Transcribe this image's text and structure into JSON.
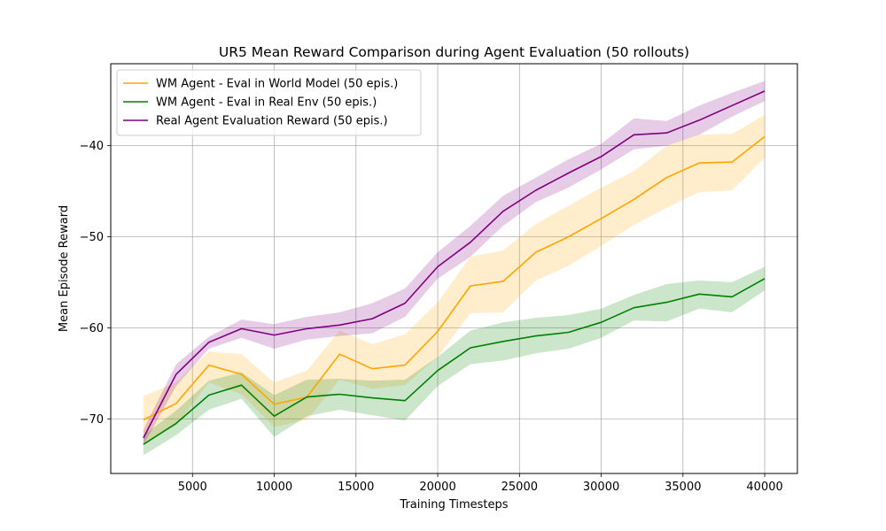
{
  "chart_data": {
    "type": "line",
    "title": "UR5 Mean Reward Comparison during Agent Evaluation (50 rollouts)",
    "xlabel": "Training Timesteps",
    "ylabel": "Mean Episode Reward",
    "xlim": [
      0,
      42000
    ],
    "ylim": [
      -76,
      -31
    ],
    "xticks": [
      5000,
      10000,
      15000,
      20000,
      25000,
      30000,
      35000,
      40000
    ],
    "yticks": [
      -70,
      -60,
      -50,
      -40
    ],
    "xtick_labels": [
      "5000",
      "10000",
      "15000",
      "20000",
      "25000",
      "30000",
      "35000",
      "40000"
    ],
    "ytick_labels": [
      "−70",
      "−60",
      "−50",
      "−40"
    ],
    "grid": true,
    "legend_position": "top-left",
    "x": [
      2000,
      4000,
      6000,
      8000,
      10000,
      12000,
      14000,
      16000,
      18000,
      20000,
      22000,
      24000,
      26000,
      28000,
      30000,
      32000,
      34000,
      36000,
      38000,
      40000
    ],
    "series": [
      {
        "name": "WM Agent - Eval in World Model (50 epis.)",
        "color": "#ffa500",
        "values": [
          -70.1,
          -68.3,
          -64.1,
          -65.1,
          -68.4,
          -67.6,
          -62.9,
          -64.5,
          -64.1,
          -60.4,
          -55.4,
          -54.9,
          -51.7,
          -50.0,
          -48.0,
          -45.9,
          -43.5,
          -41.9,
          -41.8,
          -39.0
        ],
        "lower": [
          -72.6,
          -70.7,
          -66.0,
          -67.3,
          -70.9,
          -70.1,
          -65.7,
          -66.7,
          -66.3,
          -63.2,
          -58.4,
          -58.3,
          -54.8,
          -53.2,
          -51.0,
          -48.7,
          -46.8,
          -45.1,
          -44.9,
          -41.3
        ],
        "upper": [
          -67.5,
          -66.0,
          -62.6,
          -62.9,
          -66.0,
          -64.7,
          -60.3,
          -61.8,
          -60.7,
          -57.2,
          -52.2,
          -51.5,
          -48.6,
          -46.6,
          -44.6,
          -42.8,
          -40.0,
          -38.8,
          -38.7,
          -36.6
        ]
      },
      {
        "name": "WM Agent - Eval in Real Env (50 epis.)",
        "color": "#008000",
        "values": [
          -72.8,
          -70.5,
          -67.4,
          -66.3,
          -69.7,
          -67.6,
          -67.3,
          -67.7,
          -68.0,
          -64.7,
          -62.2,
          -61.5,
          -60.9,
          -60.5,
          -59.4,
          -57.8,
          -57.2,
          -56.3,
          -56.6,
          -54.6
        ],
        "lower": [
          -74.0,
          -71.8,
          -69.0,
          -67.8,
          -72.0,
          -69.7,
          -69.0,
          -69.6,
          -70.2,
          -66.4,
          -64.0,
          -63.6,
          -62.8,
          -62.3,
          -61.1,
          -59.2,
          -59.3,
          -57.9,
          -58.3,
          -55.9
        ],
        "upper": [
          -71.8,
          -69.1,
          -65.8,
          -64.9,
          -67.4,
          -65.7,
          -65.6,
          -65.8,
          -65.7,
          -63.2,
          -60.3,
          -59.4,
          -58.9,
          -58.6,
          -57.9,
          -56.4,
          -55.2,
          -54.8,
          -55.0,
          -53.3
        ]
      },
      {
        "name": "Real Agent Evaluation Reward (50 epis.)",
        "color": "#800080",
        "values": [
          -72.1,
          -65.1,
          -61.6,
          -60.1,
          -60.8,
          -60.1,
          -59.7,
          -59.0,
          -57.3,
          -53.3,
          -50.6,
          -47.2,
          -44.9,
          -43.0,
          -41.2,
          -38.8,
          -38.6,
          -37.2,
          -35.6,
          -34.0
        ],
        "lower": [
          -72.9,
          -66.4,
          -62.3,
          -61.1,
          -62.3,
          -61.3,
          -60.9,
          -60.6,
          -58.8,
          -54.6,
          -52.2,
          -48.8,
          -46.2,
          -44.6,
          -42.6,
          -40.4,
          -40.0,
          -38.8,
          -36.8,
          -35.1
        ],
        "upper": [
          -71.2,
          -64.0,
          -61.0,
          -59.1,
          -59.6,
          -58.8,
          -58.3,
          -57.3,
          -55.7,
          -51.7,
          -48.8,
          -45.5,
          -43.5,
          -41.5,
          -39.8,
          -37.0,
          -37.3,
          -35.6,
          -34.2,
          -32.9
        ]
      }
    ]
  }
}
